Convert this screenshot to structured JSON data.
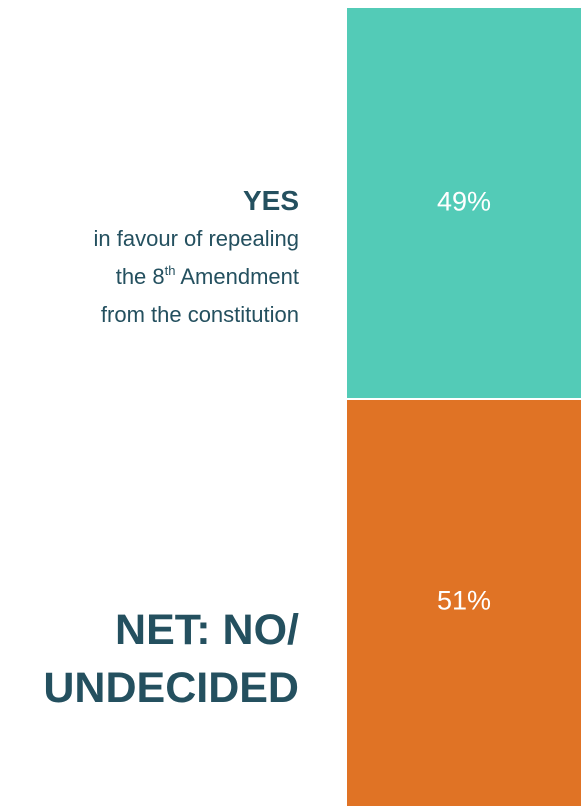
{
  "chart_data": {
    "type": "stacked-bar",
    "series": [
      {
        "name": "YES",
        "color": "#53cbb7",
        "values": [
          49
        ],
        "value_labels": [
          "49%"
        ],
        "description": [
          [
            "in favour of repealing"
          ],
          [
            "the 8",
            "th",
            " Amendment"
          ],
          [
            "from the constitution"
          ]
        ]
      },
      {
        "name": "NET: NO/ UNDECIDED",
        "color": "#e07325",
        "values": [
          51
        ],
        "value_labels": [
          "51%"
        ]
      }
    ]
  }
}
